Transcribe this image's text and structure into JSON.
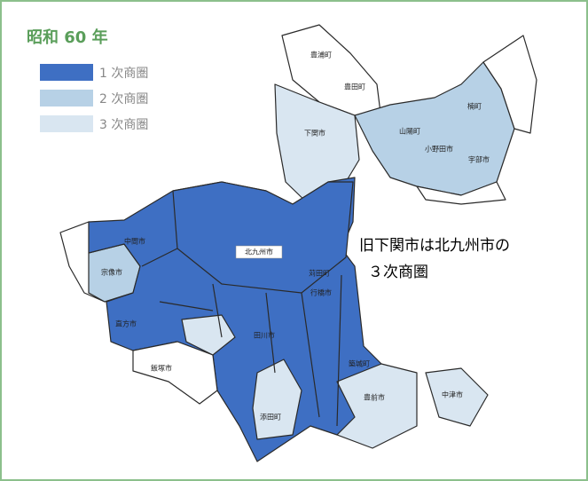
{
  "title": "昭和 60 年",
  "legend": [
    {
      "label": "1 次商圏",
      "color": "#3e6fc3"
    },
    {
      "label": "2 次商圏",
      "color": "#b7d1e6"
    },
    {
      "label": "3 次商圏",
      "color": "#d9e6f1"
    }
  ],
  "annotation": [
    "旧下関市は北九州市の",
    "３次商圏"
  ],
  "places": [
    "北九州市",
    "下関市",
    "豊浦町",
    "豊田町",
    "山陽町",
    "楠町",
    "宇部市",
    "小野田市",
    "宗像市",
    "中間市",
    "直方市",
    "行橋市",
    "苅田町",
    "飯塚市",
    "田川市",
    "豊前市",
    "中津市",
    "添田町",
    "築城町"
  ]
}
